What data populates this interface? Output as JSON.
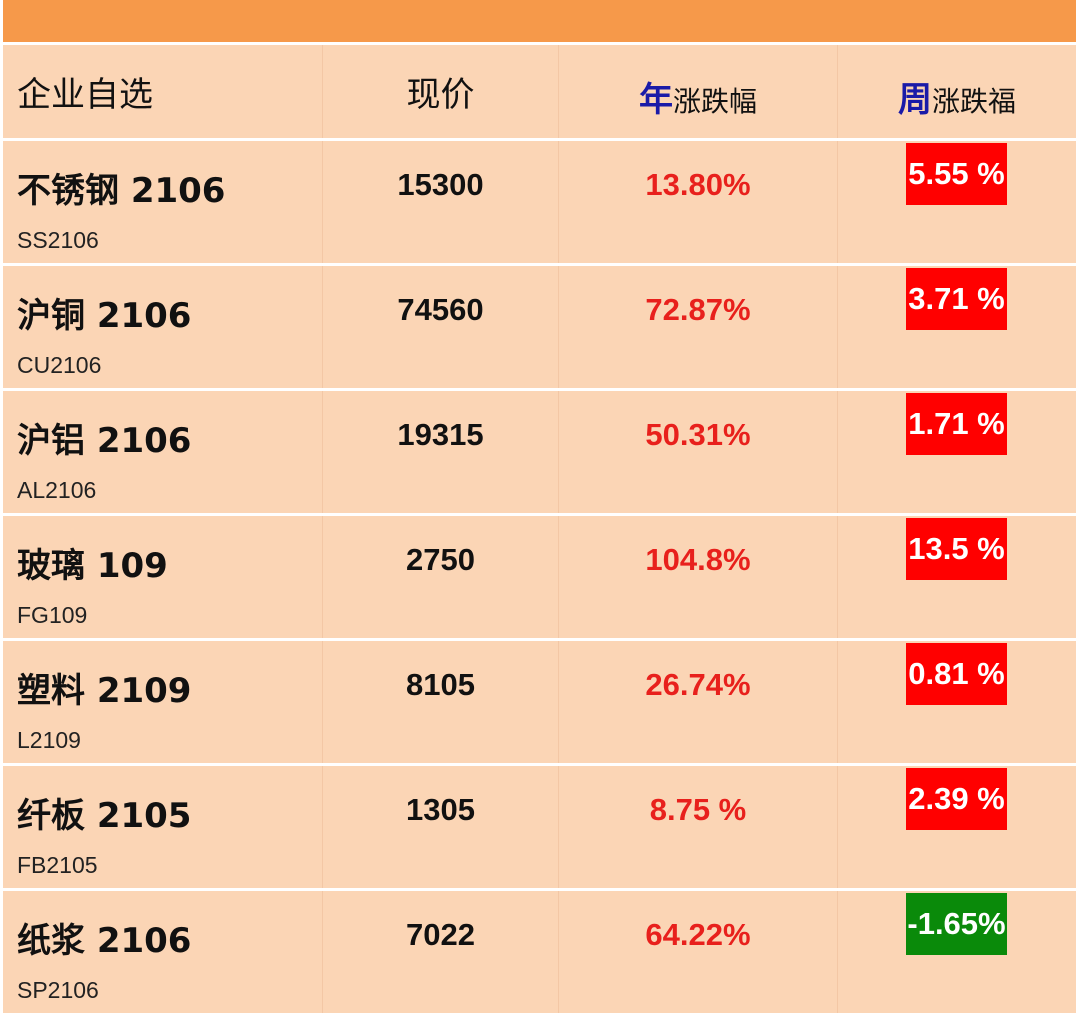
{
  "header": {
    "col1": "企业自选",
    "col2": "现价",
    "col3_mark": "年",
    "col3_rest": "涨跌幅",
    "col4_mark": "周",
    "col4_rest": "涨跌福"
  },
  "colors": {
    "up": "#ff0000",
    "down": "#0a8a0a",
    "header_bar": "#f6994a",
    "cell_bg": "#fbd5b5"
  },
  "rows": [
    {
      "name": "不锈钢 2106",
      "code": "SS2106",
      "price": "15300",
      "year": "13.80%",
      "week": "5.55 %",
      "direction": "up"
    },
    {
      "name": "沪铜 2106",
      "code": "CU2106",
      "price": "74560",
      "year": "72.87%",
      "week": "3.71 %",
      "direction": "up"
    },
    {
      "name": "沪铝 2106",
      "code": "AL2106",
      "price": "19315",
      "year": "50.31%",
      "week": "1.71 %",
      "direction": "up"
    },
    {
      "name": "玻璃 109",
      "code": "FG109",
      "price": "2750",
      "year": "104.8%",
      "week": "13.5 %",
      "direction": "up"
    },
    {
      "name": "塑料 2109",
      "code": "L2109",
      "price": "8105",
      "year": "26.74%",
      "week": "0.81 %",
      "direction": "up"
    },
    {
      "name": "纤板 2105",
      "code": "FB2105",
      "price": "1305",
      "year": "8.75 %",
      "week": "2.39 %",
      "direction": "up"
    },
    {
      "name": "纸浆 2106",
      "code": "SP2106",
      "price": "7022",
      "year": "64.22%",
      "week": "-1.65%",
      "direction": "down"
    }
  ]
}
